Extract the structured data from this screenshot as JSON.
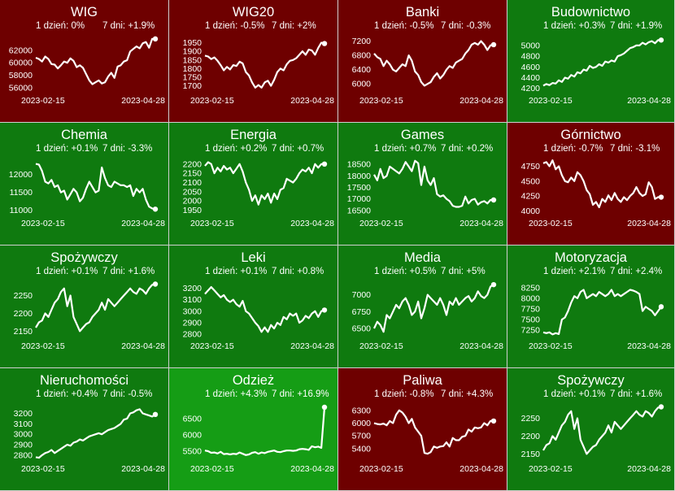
{
  "panels": [
    {
      "title": "WIG",
      "day_label": "1 dzień: 0%",
      "week_label": "7 dni: +1.9%",
      "bg": "#6e0000",
      "yticks": [
        56000,
        58000,
        60000,
        62000
      ],
      "ylim": [
        55500,
        64300
      ],
      "x_start": "2023-02-15",
      "x_end": "2023-04-28",
      "values": [
        60800,
        60600,
        60200,
        61000,
        60600,
        59800,
        59700,
        59100,
        59600,
        60200,
        60000,
        60700,
        60300,
        59300,
        59600,
        59200,
        58200,
        57200,
        56600,
        56900,
        57200,
        56700,
        56900,
        57800,
        58400,
        57600,
        59400,
        59600,
        60200,
        60400,
        61800,
        62200,
        62600,
        62300,
        63100,
        63300,
        62400,
        63800,
        63800
      ]
    },
    {
      "title": "WIG20",
      "day_label": "1 dzień: -0.5%",
      "week_label": "7 dni: +2%",
      "bg": "#6e0000",
      "yticks": [
        1700,
        1750,
        1800,
        1850,
        1900,
        1950
      ],
      "ylim": [
        1670,
        1990
      ],
      "x_start": "2023-02-15",
      "x_end": "2023-04-28",
      "values": [
        1875,
        1870,
        1855,
        1865,
        1845,
        1820,
        1790,
        1810,
        1795,
        1820,
        1815,
        1840,
        1830,
        1780,
        1760,
        1720,
        1690,
        1705,
        1690,
        1720,
        1730,
        1700,
        1735,
        1780,
        1800,
        1790,
        1825,
        1845,
        1850,
        1860,
        1880,
        1900,
        1880,
        1910,
        1905,
        1880,
        1920,
        1950,
        1945
      ]
    },
    {
      "title": "Banki",
      "day_label": "1 dzień: -0.5%",
      "week_label": "7 dni: -0.3%",
      "bg": "#6e0000",
      "yticks": [
        6000,
        6400,
        6800,
        7200
      ],
      "ylim": [
        5800,
        7350
      ],
      "x_start": "2023-02-15",
      "x_end": "2023-04-28",
      "values": [
        6850,
        6750,
        6700,
        6500,
        6650,
        6550,
        6400,
        6350,
        6450,
        6550,
        6500,
        6800,
        6650,
        6350,
        6250,
        6050,
        5950,
        6000,
        6050,
        6200,
        6300,
        6150,
        6250,
        6400,
        6500,
        6450,
        6600,
        6650,
        6700,
        6850,
        6950,
        7100,
        7150,
        7100,
        7200,
        7100,
        6950,
        7080,
        7100
      ]
    },
    {
      "title": "Budownictwo",
      "day_label": "1 dzień: +0.3%",
      "week_label": "7 dni: +1.9%",
      "bg": "#0f7a0f",
      "yticks": [
        4200,
        4400,
        4600,
        4800,
        5000
      ],
      "ylim": [
        4150,
        5180
      ],
      "x_start": "2023-02-15",
      "x_end": "2023-04-28",
      "values": [
        4250,
        4280,
        4260,
        4300,
        4290,
        4350,
        4320,
        4400,
        4380,
        4450,
        4420,
        4500,
        4480,
        4550,
        4530,
        4620,
        4580,
        4600,
        4650,
        4620,
        4700,
        4680,
        4720,
        4700,
        4800,
        4820,
        4850,
        4900,
        4950,
        4970,
        5000,
        5000,
        5050,
        5020,
        5060,
        5080,
        5040,
        5100,
        5100
      ]
    },
    {
      "title": "Chemia",
      "day_label": "1 dzień: +0.1%",
      "week_label": "7 dni: -3.3%",
      "bg": "#0f7a0f",
      "yticks": [
        11000,
        11500,
        12000
      ],
      "ylim": [
        10900,
        12450
      ],
      "x_start": "2023-02-15",
      "x_end": "2023-04-28",
      "values": [
        12300,
        12280,
        12100,
        11800,
        11750,
        11850,
        11650,
        11700,
        11500,
        11550,
        11300,
        11450,
        11600,
        11500,
        11250,
        11350,
        11600,
        11800,
        11650,
        11500,
        11550,
        12200,
        11900,
        11700,
        11650,
        11800,
        11750,
        11700,
        11700,
        11650,
        11700,
        11400,
        11600,
        11500,
        11600,
        11300,
        11100,
        11050,
        11030
      ]
    },
    {
      "title": "Energia",
      "day_label": "1 dzień: +0.2%",
      "week_label": "7 dni: +0.7%",
      "bg": "#0f7a0f",
      "yticks": [
        1950,
        2000,
        2050,
        2100,
        2150,
        2200
      ],
      "ylim": [
        1930,
        2230
      ],
      "x_start": "2023-02-15",
      "x_end": "2023-04-28",
      "values": [
        2190,
        2210,
        2200,
        2150,
        2180,
        2160,
        2190,
        2170,
        2180,
        2150,
        2175,
        2200,
        2160,
        2100,
        2060,
        2000,
        2030,
        1980,
        2030,
        2010,
        2040,
        1990,
        2040,
        2010,
        2060,
        2070,
        2120,
        2110,
        2100,
        2120,
        2150,
        2170,
        2160,
        2180,
        2150,
        2200,
        2180,
        2200,
        2200
      ]
    },
    {
      "title": "Games",
      "day_label": "1 dzień: +0.7%",
      "week_label": "7 dni: +0.2%",
      "bg": "#0f7a0f",
      "yticks": [
        16500,
        17000,
        17500,
        18000,
        18500
      ],
      "ylim": [
        16350,
        18750
      ],
      "x_start": "2023-02-15",
      "x_end": "2023-04-28",
      "values": [
        18050,
        17800,
        18300,
        17900,
        18000,
        18400,
        18300,
        18200,
        18100,
        18300,
        18600,
        18400,
        18200,
        18650,
        18550,
        17600,
        18400,
        17800,
        17600,
        17900,
        17200,
        17100,
        17150,
        17000,
        16900,
        16700,
        16650,
        16650,
        16700,
        17100,
        16800,
        16950,
        17000,
        16750,
        16850,
        16900,
        16800,
        16950,
        16950
      ]
    },
    {
      "title": "Górnictwo",
      "day_label": "1 dzień: -0.7%",
      "week_label": "7 dni: -3.1%",
      "bg": "#6e0000",
      "yticks": [
        4000,
        4250,
        4500,
        4750
      ],
      "ylim": [
        3950,
        4880
      ],
      "x_start": "2023-02-15",
      "x_end": "2023-04-28",
      "values": [
        4800,
        4820,
        4750,
        4850,
        4700,
        4750,
        4600,
        4500,
        4480,
        4560,
        4500,
        4650,
        4600,
        4500,
        4350,
        4280,
        4100,
        4150,
        4060,
        4200,
        4150,
        4260,
        4180,
        4300,
        4200,
        4150,
        4230,
        4180,
        4250,
        4300,
        4400,
        4300,
        4250,
        4280,
        4480,
        4400,
        4200,
        4230,
        4230
      ]
    },
    {
      "title": "Spożywczy",
      "day_label": "1 dzień: +0.1%",
      "week_label": "7 dni: +1.6%",
      "bg": "#0f7a0f",
      "yticks": [
        2150,
        2200,
        2250
      ],
      "ylim": [
        2135,
        2290
      ],
      "x_start": "2023-02-15",
      "x_end": "2023-04-28",
      "values": [
        2160,
        2175,
        2180,
        2200,
        2190,
        2210,
        2230,
        2240,
        2260,
        2270,
        2220,
        2250,
        2190,
        2170,
        2150,
        2160,
        2170,
        2175,
        2190,
        2200,
        2210,
        2230,
        2210,
        2240,
        2230,
        2220,
        2230,
        2240,
        2250,
        2260,
        2270,
        2260,
        2255,
        2270,
        2265,
        2255,
        2270,
        2280,
        2282
      ]
    },
    {
      "title": "Leki",
      "day_label": "1 dzień: +0.1%",
      "week_label": "7 dni: +0.8%",
      "bg": "#0f7a0f",
      "yticks": [
        2800,
        2900,
        3000,
        3100,
        3200
      ],
      "ylim": [
        2780,
        3260
      ],
      "x_start": "2023-02-15",
      "x_end": "2023-04-28",
      "values": [
        3150,
        3180,
        3210,
        3180,
        3150,
        3120,
        3140,
        3100,
        3080,
        3100,
        3060,
        3040,
        3090,
        3000,
        2980,
        2940,
        2900,
        2870,
        2820,
        2860,
        2820,
        2880,
        2850,
        2900,
        2880,
        2950,
        2930,
        2980,
        2960,
        2980,
        2900,
        2920,
        2960,
        2940,
        2980,
        3000,
        2950,
        3000,
        3010
      ]
    },
    {
      "title": "Media",
      "day_label": "1 dzień: +0.5%",
      "week_label": "7 dni: +5%",
      "bg": "#0f7a0f",
      "yticks": [
        6500,
        6750,
        7000
      ],
      "ylim": [
        6380,
        7200
      ],
      "x_start": "2023-02-15",
      "x_end": "2023-04-28",
      "values": [
        6500,
        6600,
        6550,
        6450,
        6700,
        6650,
        6750,
        6850,
        6800,
        6900,
        6950,
        6850,
        6700,
        6750,
        6900,
        6650,
        6800,
        7000,
        6950,
        6900,
        6850,
        6950,
        6850,
        6700,
        6900,
        6850,
        6950,
        6850,
        6900,
        6950,
        6980,
        6900,
        6950,
        7050,
        6980,
        6950,
        7000,
        7120,
        7150
      ]
    },
    {
      "title": "Motoryzacja",
      "day_label": "1 dzień: +2.1%",
      "week_label": "7 dni: +2.4%",
      "bg": "#0f7a0f",
      "yticks": [
        7250,
        7500,
        7750,
        8000,
        8250
      ],
      "ylim": [
        7100,
        8400
      ],
      "x_start": "2023-02-15",
      "x_end": "2023-04-28",
      "values": [
        7200,
        7180,
        7200,
        7150,
        7180,
        7160,
        7500,
        7550,
        7700,
        7900,
        8050,
        8000,
        8150,
        8200,
        8000,
        8050,
        8100,
        8050,
        8150,
        8100,
        8050,
        8100,
        8200,
        8050,
        8100,
        8050,
        8100,
        8150,
        8200,
        8180,
        8150,
        8100,
        7700,
        7800,
        7750,
        7700,
        7600,
        7700,
        7800
      ]
    },
    {
      "title": "Nieruchomości",
      "day_label": "1 dzień: +0.4%",
      "week_label": "7 dni: -0.5%",
      "bg": "#0f7a0f",
      "yticks": [
        2800,
        2900,
        3000,
        3100,
        3200
      ],
      "ylim": [
        2760,
        3290
      ],
      "x_start": "2023-02-15",
      "x_end": "2023-04-28",
      "values": [
        2780,
        2775,
        2800,
        2820,
        2830,
        2850,
        2820,
        2840,
        2860,
        2880,
        2900,
        2890,
        2920,
        2930,
        2950,
        2940,
        2960,
        2980,
        2990,
        3000,
        3010,
        3000,
        3020,
        3040,
        3050,
        3060,
        3080,
        3100,
        3140,
        3150,
        3200,
        3210,
        3230,
        3240,
        3200,
        3190,
        3180,
        3170,
        3190
      ]
    },
    {
      "title": "Odzież",
      "day_label": "1 dzień: +4.3%",
      "week_label": "7 dni: +16.9%",
      "bg": "#159d15",
      "yticks": [
        5500,
        6000,
        6500
      ],
      "ylim": [
        5250,
        6950
      ],
      "x_start": "2023-02-15",
      "x_end": "2023-04-28",
      "values": [
        5520,
        5500,
        5450,
        5460,
        5430,
        5480,
        5410,
        5420,
        5400,
        5420,
        5410,
        5460,
        5420,
        5380,
        5400,
        5450,
        5470,
        5420,
        5460,
        5440,
        5480,
        5500,
        5520,
        5480,
        5470,
        5500,
        5520,
        5520,
        5510,
        5520,
        5560,
        5570,
        5560,
        5540,
        5650,
        5620,
        5640,
        5600,
        6850
      ]
    },
    {
      "title": "Paliwa",
      "day_label": "1 dzień: -0.8%",
      "week_label": "7 dni: +4.3%",
      "bg": "#6e0000",
      "yticks": [
        5400,
        5700,
        6000,
        6300
      ],
      "ylim": [
        5150,
        6450
      ],
      "x_start": "2023-02-15",
      "x_end": "2023-04-28",
      "values": [
        6000,
        5980,
        5970,
        5990,
        5950,
        6050,
        6000,
        6200,
        6300,
        6250,
        6150,
        6000,
        6100,
        5900,
        5800,
        5700,
        5300,
        5280,
        5320,
        5450,
        5420,
        5450,
        5460,
        5550,
        5450,
        5650,
        5600,
        5600,
        5680,
        5700,
        5850,
        5800,
        5900,
        5880,
        5900,
        6000,
        5950,
        6050,
        6050
      ]
    },
    {
      "title": "Spożywczy",
      "day_label": "1 dzień: +0.1%",
      "week_label": "7 dni: +1.6%",
      "bg": "#0f7a0f",
      "yticks": [
        2150,
        2200,
        2250
      ],
      "ylim": [
        2135,
        2290
      ],
      "x_start": "2023-02-15",
      "x_end": "2023-04-28",
      "values": [
        2160,
        2175,
        2180,
        2200,
        2190,
        2210,
        2230,
        2240,
        2260,
        2270,
        2220,
        2250,
        2190,
        2170,
        2150,
        2160,
        2170,
        2175,
        2190,
        2200,
        2210,
        2230,
        2210,
        2240,
        2230,
        2220,
        2230,
        2240,
        2250,
        2260,
        2270,
        2260,
        2255,
        2270,
        2265,
        2255,
        2270,
        2280,
        2282
      ]
    }
  ],
  "chart_data": {
    "type": "line",
    "x_start": "2023-02-15",
    "x_end": "2023-04-28",
    "grid": false,
    "series": [
      {
        "name": "WIG"
      },
      {
        "name": "WIG20"
      },
      {
        "name": "Banki"
      },
      {
        "name": "Budownictwo"
      },
      {
        "name": "Chemia"
      },
      {
        "name": "Energia"
      },
      {
        "name": "Games"
      },
      {
        "name": "Górnictwo"
      },
      {
        "name": "Spożywczy"
      },
      {
        "name": "Leki"
      },
      {
        "name": "Media"
      },
      {
        "name": "Motoryzacja"
      },
      {
        "name": "Nieruchomości"
      },
      {
        "name": "Odzież"
      },
      {
        "name": "Paliwa"
      },
      {
        "name": "Spożywczy"
      }
    ]
  }
}
